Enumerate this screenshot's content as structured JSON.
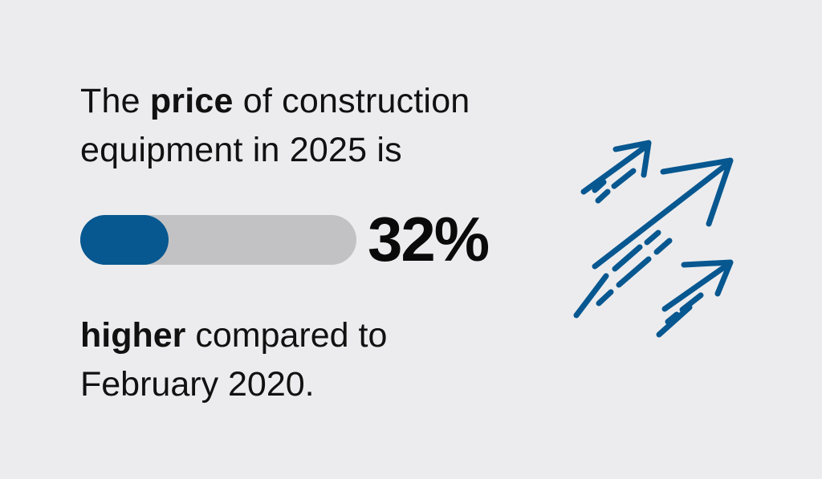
{
  "headline": {
    "part1": "The ",
    "emphasis": "price",
    "part2": " of construction equipment in 2025 is"
  },
  "stat": {
    "value": "32%",
    "progress_fraction": 0.32
  },
  "footline": {
    "emphasis": "higher",
    "part2": " compared to February 2020."
  },
  "colors": {
    "background": "#ececee",
    "accent": "#075790",
    "track": "#c2c2c4",
    "text": "#111111"
  },
  "icons": {
    "arrows": "rising-arrows-icon"
  }
}
